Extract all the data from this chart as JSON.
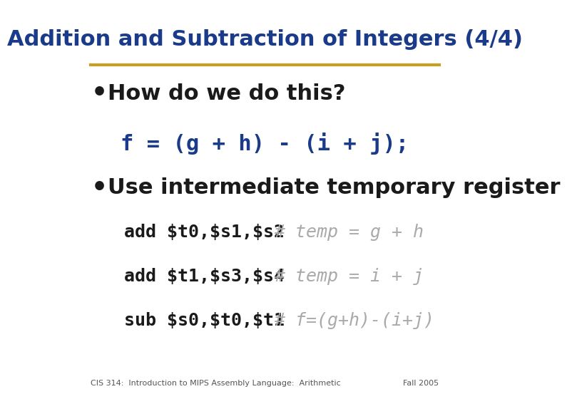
{
  "title": "Addition and Subtraction of Integers (4/4)",
  "title_color": "#1a3a8a",
  "title_underline_color": "#c8a020",
  "bg_color": "#ffffff",
  "bullet1": "How do we do this?",
  "bullet1_color": "#1a1a1a",
  "code_line": "f = (g + h) - (i + j);",
  "code_line_color": "#1a3a8a",
  "bullet2": "Use intermediate temporary register",
  "bullet2_color": "#1a1a1a",
  "asm_lines": [
    [
      "add $t0,$s1,$s2",
      "# temp = g + h"
    ],
    [
      "add $t1,$s3,$s4",
      "# temp = i + j"
    ],
    [
      "sub $s0,$t0,$t1",
      "# f=(g+h)-(i+j)"
    ]
  ],
  "asm_cmd_color": "#1a1a1a",
  "asm_comment_color": "#aaaaaa",
  "footer_left": "CIS 314:  Introduction to MIPS Assembly Language:  Arithmetic",
  "footer_right": "Fall 2005",
  "footer_color": "#555555"
}
